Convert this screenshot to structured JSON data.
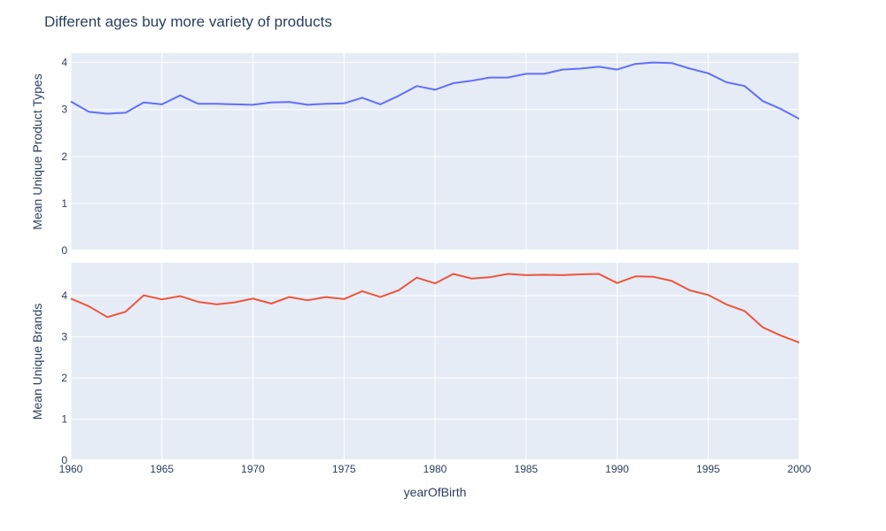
{
  "colors": {
    "plot_bg": "#E5ECF6",
    "grid": "#ffffff",
    "text": "#2a3f5f",
    "series1": "#636EFA",
    "series2": "#EF553B"
  },
  "chart_data": {
    "type": "line",
    "title": "Different ages buy more variety of products",
    "xlabel": "yearOfBirth",
    "xlim": [
      1960,
      2000
    ],
    "xticks": [
      1960,
      1965,
      1970,
      1975,
      1980,
      1985,
      1990,
      1995,
      2000
    ],
    "grid": true,
    "x": [
      1960,
      1961,
      1962,
      1963,
      1964,
      1965,
      1966,
      1967,
      1968,
      1969,
      1970,
      1971,
      1972,
      1973,
      1974,
      1975,
      1976,
      1977,
      1978,
      1979,
      1980,
      1981,
      1982,
      1983,
      1984,
      1985,
      1986,
      1987,
      1988,
      1989,
      1990,
      1991,
      1992,
      1993,
      1994,
      1995,
      1996,
      1997,
      1998,
      1999,
      2000
    ],
    "panels": [
      {
        "ylabel": "Mean Unique Product Types",
        "ylim": [
          0,
          4.2
        ],
        "yticks": [
          0,
          1,
          2,
          3,
          4
        ],
        "series": [
          {
            "color": "#636EFA",
            "values": [
              3.17,
              2.95,
              2.91,
              2.93,
              3.15,
              3.11,
              3.3,
              3.12,
              3.12,
              3.11,
              3.1,
              3.15,
              3.16,
              3.1,
              3.12,
              3.13,
              3.25,
              3.11,
              3.29,
              3.5,
              3.42,
              3.56,
              3.61,
              3.68,
              3.68,
              3.76,
              3.76,
              3.85,
              3.87,
              3.91,
              3.85,
              3.97,
              4.0,
              3.99,
              3.87,
              3.77,
              3.58,
              3.5,
              3.18,
              3.01,
              2.8
            ]
          }
        ]
      },
      {
        "ylabel": "Mean Unique Brands",
        "ylim": [
          0,
          4.8
        ],
        "yticks": [
          0,
          1,
          2,
          3,
          4
        ],
        "series": [
          {
            "color": "#EF553B",
            "values": [
              3.93,
              3.74,
              3.48,
              3.61,
              4.01,
              3.91,
              3.99,
              3.85,
              3.79,
              3.84,
              3.93,
              3.81,
              3.97,
              3.89,
              3.97,
              3.92,
              4.11,
              3.97,
              4.13,
              4.44,
              4.3,
              4.53,
              4.42,
              4.45,
              4.53,
              4.5,
              4.51,
              4.5,
              4.52,
              4.53,
              4.31,
              4.47,
              4.46,
              4.36,
              4.13,
              4.02,
              3.79,
              3.63,
              3.23,
              3.03,
              2.86
            ]
          }
        ]
      }
    ]
  }
}
